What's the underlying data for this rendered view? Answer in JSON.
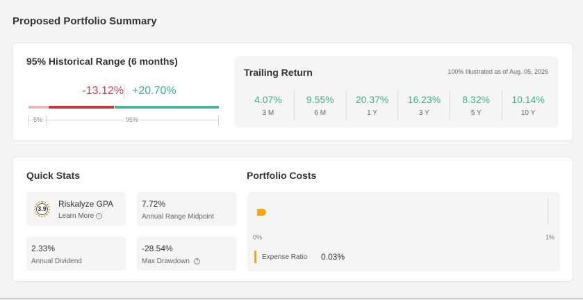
{
  "page": {
    "title": "Proposed Portfolio Summary"
  },
  "historical_range": {
    "title": "95% Historical Range (6 months)",
    "low": "-13.12%",
    "high": "+20.70%",
    "scale_low_label": "5%",
    "scale_high_label": "95%",
    "colors": {
      "negative": "#c9353f",
      "positive": "#4bb596",
      "tail": "#f0b7b7"
    }
  },
  "trailing_return": {
    "title": "Trailing Return",
    "note": "100% Illustrated as of Aug. 05, 2026",
    "periods": [
      {
        "value": "4.07%",
        "label": "3 M"
      },
      {
        "value": "9.55%",
        "label": "6 M"
      },
      {
        "value": "20.37%",
        "label": "1 Y"
      },
      {
        "value": "16.23%",
        "label": "3 Y"
      },
      {
        "value": "8.32%",
        "label": "5 Y"
      },
      {
        "value": "10.14%",
        "label": "10 Y"
      }
    ]
  },
  "quick_stats": {
    "title": "Quick Stats",
    "gpa": {
      "badge": "3.9",
      "name": "Riskalyze GPA",
      "link": "Learn More",
      "icon": "info-icon"
    },
    "range_midpoint": {
      "value": "7.72%",
      "label": "Annual Range Midpoint"
    },
    "annual_dividend": {
      "value": "2.33%",
      "label": "Annual Dividend"
    },
    "max_drawdown": {
      "value": "-28.54%",
      "label": "Max Drawdown",
      "icon": "info-icon"
    }
  },
  "portfolio_costs": {
    "title": "Portfolio Costs",
    "axis_min": "0%",
    "axis_max": "1%",
    "expense_ratio_label": "Expense Ratio",
    "expense_ratio_value": "0.03%",
    "expense_ratio_fraction": 0.03,
    "bar_color": "#f0a818"
  }
}
